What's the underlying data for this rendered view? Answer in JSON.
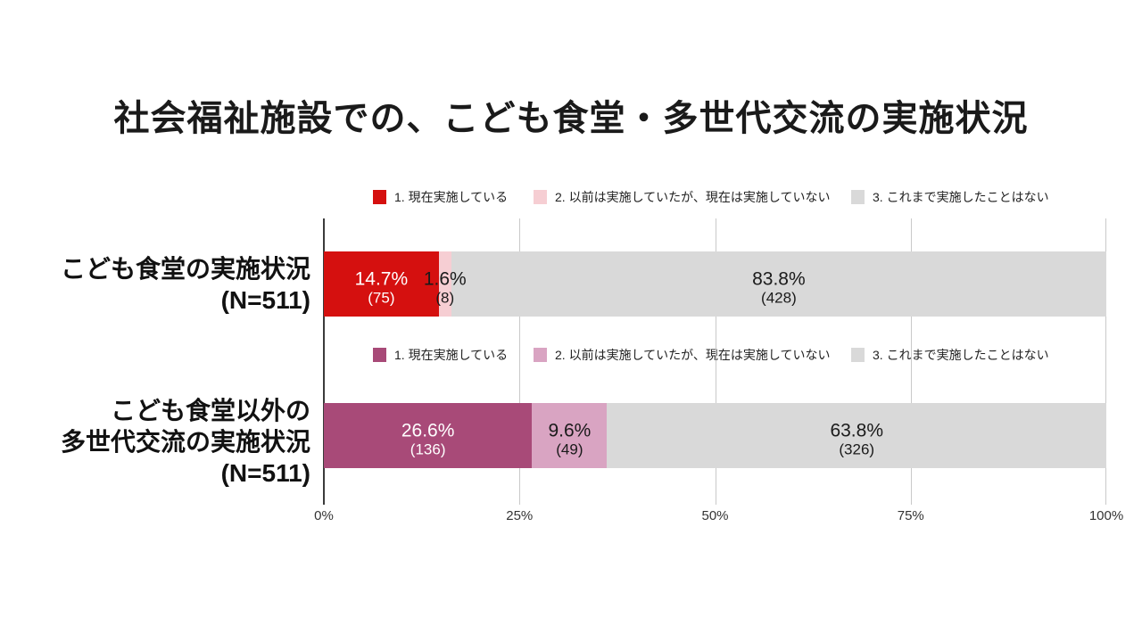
{
  "chart_data": {
    "type": "bar",
    "variant": "horizontal-stacked-100",
    "title": "社会福祉施設での、こども食堂・多世代交流の実施状況",
    "grid": true,
    "legend_position": "above-each-bar",
    "xlim": [
      0,
      100
    ],
    "x_ticks": [
      "0%",
      "25%",
      "50%",
      "75%",
      "100%"
    ],
    "rows": [
      {
        "name": "こども食堂の実施状況",
        "n": 511,
        "label_lines": [
          "こども食堂の実施状況",
          "(N=511)"
        ],
        "legend": [
          {
            "label": "1. 現在実施している",
            "color": "#d5100f"
          },
          {
            "label": "2. 以前は実施していたが、現在は実施していない",
            "color": "#f6ced3"
          },
          {
            "label": "3. これまで実施したことはない",
            "color": "#d9d9d9"
          }
        ],
        "segments": [
          {
            "category": "1. 現在実施している",
            "pct": 14.7,
            "count": 75,
            "pct_label": "14.7%",
            "count_label": "(75)",
            "color": "#d5100f",
            "text_color": "#ffffff"
          },
          {
            "category": "2. 以前は実施していたが、現在は実施していない",
            "pct": 1.6,
            "count": 8,
            "pct_label": "1.6%",
            "count_label": "(8)",
            "color": "#f6ced3",
            "text_color": "#1a1a1a"
          },
          {
            "category": "3. これまで実施したことはない",
            "pct": 83.8,
            "count": 428,
            "pct_label": "83.8%",
            "count_label": "(428)",
            "color": "#d9d9d9",
            "text_color": "#1a1a1a"
          }
        ]
      },
      {
        "name": "こども食堂以外の多世代交流の実施状況",
        "n": 511,
        "label_lines": [
          "こども食堂以外の",
          "多世代交流の実施状況",
          "(N=511)"
        ],
        "legend": [
          {
            "label": "1. 現在実施している",
            "color": "#a84a78"
          },
          {
            "label": "2. 以前は実施していたが、現在は実施していない",
            "color": "#d9a4c2"
          },
          {
            "label": "3. これまで実施したことはない",
            "color": "#d9d9d9"
          }
        ],
        "segments": [
          {
            "category": "1. 現在実施している",
            "pct": 26.6,
            "count": 136,
            "pct_label": "26.6%",
            "count_label": "(136)",
            "color": "#a84a78",
            "text_color": "#ffffff"
          },
          {
            "category": "2. 以前は実施していたが、現在は実施していない",
            "pct": 9.6,
            "count": 49,
            "pct_label": "9.6%",
            "count_label": "(49)",
            "color": "#d9a4c2",
            "text_color": "#1a1a1a"
          },
          {
            "category": "3. これまで実施したことはない",
            "pct": 63.8,
            "count": 326,
            "pct_label": "63.8%",
            "count_label": "(326)",
            "color": "#d9d9d9",
            "text_color": "#1a1a1a"
          }
        ]
      }
    ]
  }
}
